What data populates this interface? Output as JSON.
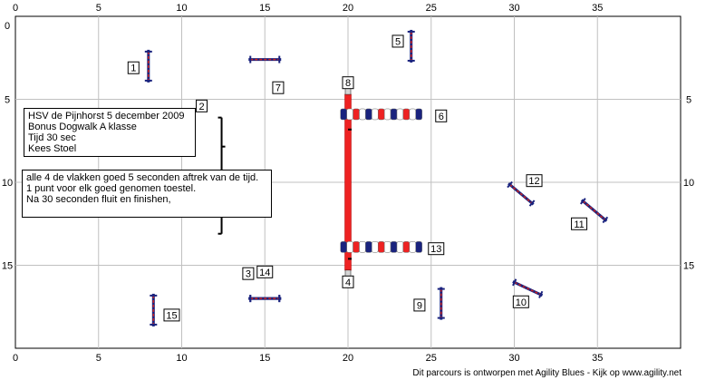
{
  "course": {
    "field": {
      "width_m": 40,
      "height_m": 20
    },
    "grid_step_m": 5,
    "x_ticks": [
      "0",
      "5",
      "10",
      "15",
      "20",
      "25",
      "30",
      "35"
    ],
    "y_ticks_left": [
      "0",
      "5",
      "10",
      "15"
    ],
    "y_ticks_right": [
      "5",
      "10",
      "15"
    ],
    "colors": {
      "grid": "#c0c0c0",
      "bar": "#cc2222",
      "upright": "#1a237e",
      "tunnel_blue": "#1a237e",
      "tunnel_red": "#ee2222",
      "tunnel_white": "#ffffff",
      "dogwalk": "#ee2222"
    },
    "obstacles": [
      {
        "type": "jump",
        "number": "1",
        "x": 8.0,
        "y": 3.0,
        "angle": 90,
        "label_x": 7.1,
        "label_y": 3.1
      },
      {
        "type": "wall",
        "number": "2",
        "x": 12.4,
        "y": 9.6,
        "angle": 90,
        "label_x": 11.2,
        "label_y": 5.4
      },
      {
        "type": "jump",
        "number": "3",
        "x": 15.0,
        "y": 17.0,
        "angle": 0,
        "label_x": 14.0,
        "label_y": 15.5
      },
      {
        "type": "jump",
        "number": "14",
        "x": 15.0,
        "y": 17.0,
        "angle": 0,
        "label_x": 15.0,
        "label_y": 15.4
      },
      {
        "type": "dogwalk",
        "number": "4",
        "x": 20.0,
        "y": 10.0,
        "angle": 90,
        "label_x": 20.0,
        "label_y": 16.0
      },
      {
        "type": "dogwalk",
        "number": "8",
        "x": 20.0,
        "y": 10.0,
        "angle": 90,
        "label_x": 20.0,
        "label_y": 4.0
      },
      {
        "type": "jump",
        "number": "5",
        "x": 23.8,
        "y": 1.8,
        "angle": 90,
        "label_x": 23.0,
        "label_y": 1.5
      },
      {
        "type": "tunnel",
        "number": "6",
        "x": 22.0,
        "y": 5.9,
        "angle": 0,
        "label_x": 25.6,
        "label_y": 6.0
      },
      {
        "type": "jump",
        "number": "7",
        "x": 15.0,
        "y": 2.6,
        "angle": 0,
        "label_x": 15.8,
        "label_y": 4.3
      },
      {
        "type": "jump",
        "number": "9",
        "x": 25.6,
        "y": 17.3,
        "angle": 90,
        "label_x": 24.3,
        "label_y": 17.4
      },
      {
        "type": "jump",
        "number": "10",
        "x": 30.8,
        "y": 16.4,
        "angle": 25,
        "label_x": 30.4,
        "label_y": 17.2
      },
      {
        "type": "jump",
        "number": "11",
        "x": 34.8,
        "y": 11.7,
        "angle": 40,
        "label_x": 33.9,
        "label_y": 12.5
      },
      {
        "type": "jump",
        "number": "12",
        "x": 30.4,
        "y": 10.7,
        "angle": 40,
        "label_x": 31.2,
        "label_y": 9.9
      },
      {
        "type": "tunnel",
        "number": "13",
        "x": 22.0,
        "y": 13.9,
        "angle": 0,
        "label_x": 25.3,
        "label_y": 14.0
      },
      {
        "type": "jump",
        "number": "15",
        "x": 8.3,
        "y": 17.7,
        "angle": 90,
        "label_x": 9.4,
        "label_y": 18.0
      }
    ]
  },
  "info_box_1": {
    "lines": [
      "HSV de Pijnhorst 5 december 2009",
      "Bonus Dogwalk  A klasse",
      "Tijd 30 sec",
      "Kees Stoel"
    ]
  },
  "info_box_2": {
    "lines": [
      "alle 4 de vlakken goed 5 seconden aftrek van de tijd.",
      "1 punt voor elk goed genomen toestel.",
      "Na 30 seconden fluit en finishen,"
    ]
  },
  "footer": {
    "credit": "Dit parcours is ontworpen met Agility Blues - Kijk op www.agility.net"
  }
}
